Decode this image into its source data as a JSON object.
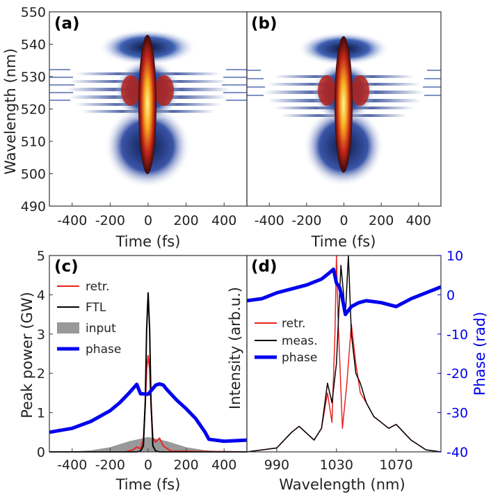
{
  "chart_data": [
    {
      "panel": "(a)",
      "type": "heatmap",
      "title": "",
      "xlabel": "Time (fs)",
      "ylabel": "Wavelength (nm)",
      "xlim": [
        -520,
        520
      ],
      "ylim": [
        490,
        550
      ],
      "xticks": [
        -400,
        -200,
        0,
        200,
        400
      ],
      "yticks": [
        490,
        500,
        510,
        520,
        530,
        540,
        550
      ],
      "description_values": {
        "center_time": 0,
        "center_wavelength": 520,
        "wavelength_span": [
          495,
          543
        ]
      }
    },
    {
      "panel": "(b)",
      "type": "heatmap",
      "title": "",
      "xlabel": "Time (fs)",
      "ylabel": "",
      "xlim": [
        -520,
        520
      ],
      "ylim": [
        490,
        550
      ],
      "xticks": [
        -400,
        -200,
        0,
        200,
        400
      ],
      "description_values": {
        "center_time": 0,
        "center_wavelength": 520,
        "wavelength_span": [
          497,
          542
        ]
      }
    },
    {
      "panel": "(c)",
      "type": "line",
      "xlabel": "Time (fs)",
      "ylabel": "Peak power (GW)",
      "xlim": [
        -520,
        520
      ],
      "ylim": [
        0,
        5
      ],
      "xticks": [
        -400,
        -200,
        0,
        200,
        400
      ],
      "yticks": [
        0,
        1,
        2,
        3,
        4,
        5
      ],
      "legend": [
        "retr.",
        "FTL",
        "input",
        "phase"
      ],
      "legend_position": "top-left",
      "series": [
        {
          "name": "retr.",
          "color": "#e8231f",
          "x": [
            -520,
            -120,
            -80,
            -60,
            -40,
            -25,
            -15,
            -8,
            0,
            8,
            15,
            25,
            40,
            60,
            80,
            120,
            520
          ],
          "values": [
            0,
            0,
            0.05,
            0.12,
            0.08,
            0.3,
            1.2,
            2.1,
            2.45,
            2.1,
            1.2,
            0.35,
            0.25,
            0.35,
            0.15,
            0.02,
            0
          ]
        },
        {
          "name": "FTL",
          "color": "#000000",
          "x": [
            -520,
            -60,
            -40,
            -25,
            -15,
            -8,
            0,
            8,
            15,
            25,
            40,
            60,
            520
          ],
          "values": [
            0,
            0,
            0.02,
            0.15,
            1.3,
            3.1,
            4.05,
            3.1,
            1.3,
            0.15,
            0.02,
            0,
            0
          ]
        },
        {
          "name": "input",
          "color": "#999999",
          "x": [
            -520,
            -400,
            -300,
            -200,
            -100,
            0,
            100,
            200,
            300,
            400,
            520
          ],
          "values": [
            0,
            0.01,
            0.04,
            0.12,
            0.27,
            0.38,
            0.27,
            0.12,
            0.04,
            0.01,
            0
          ]
        },
        {
          "name": "phase",
          "color": "#0000ee",
          "x": [
            -520,
            -400,
            -300,
            -200,
            -150,
            -100,
            -60,
            -40,
            0,
            40,
            60,
            80,
            100,
            150,
            200,
            250,
            300,
            320,
            400,
            520
          ],
          "values": [
            0.5,
            0.6,
            0.78,
            1.05,
            1.25,
            1.5,
            1.72,
            1.48,
            1.47,
            1.7,
            1.73,
            1.7,
            1.58,
            1.32,
            1.1,
            0.85,
            0.5,
            0.32,
            0.27,
            0.3
          ]
        }
      ]
    },
    {
      "panel": "(d)",
      "type": "line",
      "xlabel": "Wavelength (nm)",
      "ylabel": "Intensity (arb.u.)",
      "y2label": "Phase (rad)",
      "xlim": [
        970,
        1100
      ],
      "y2lim": [
        -40,
        10
      ],
      "xticks": [
        990,
        1030,
        1070
      ],
      "y2ticks": [
        10,
        0,
        -10,
        -20,
        -30,
        -40
      ],
      "legend": [
        "retr.",
        "meas.",
        "phase"
      ],
      "legend_position": "middle-left",
      "series": [
        {
          "name": "retr.",
          "color": "#e8231f",
          "x": [
            970,
            990,
            1000,
            1005,
            1015,
            1020,
            1024,
            1027,
            1029,
            1030,
            1031,
            1034,
            1037,
            1040,
            1043,
            1046,
            1050,
            1055,
            1060,
            1065,
            1070,
            1075,
            1080,
            1090,
            1100
          ],
          "values": [
            0,
            0.02,
            0.1,
            0.13,
            0.06,
            0.12,
            0.3,
            0.15,
            0.6,
            1.0,
            0.7,
            0.12,
            0.35,
            0.65,
            0.45,
            0.3,
            0.25,
            0.18,
            0.15,
            0.12,
            0.14,
            0.1,
            0.06,
            0.01,
            0
          ]
        },
        {
          "name": "meas.",
          "color": "#000000",
          "x": [
            970,
            990,
            1000,
            1005,
            1015,
            1020,
            1024,
            1027,
            1030,
            1033,
            1036,
            1038,
            1040,
            1043,
            1046,
            1050,
            1055,
            1060,
            1065,
            1070,
            1075,
            1080,
            1090,
            1100
          ],
          "values": [
            0,
            0.02,
            0.1,
            0.13,
            0.06,
            0.12,
            0.35,
            0.25,
            0.45,
            0.95,
            0.7,
            1.0,
            0.6,
            0.4,
            0.35,
            0.25,
            0.18,
            0.15,
            0.12,
            0.14,
            0.1,
            0.06,
            0.01,
            0
          ]
        },
        {
          "name": "phase",
          "color": "#0000ee",
          "x": [
            970,
            980,
            990,
            1000,
            1010,
            1020,
            1025,
            1028,
            1030,
            1032,
            1034,
            1036,
            1038,
            1040,
            1045,
            1050,
            1060,
            1070,
            1080,
            1090,
            1100
          ],
          "values": [
            -1.5,
            -1,
            0.5,
            1.5,
            2.5,
            4,
            5.5,
            6.5,
            3,
            2,
            -1,
            -5,
            -4,
            -3,
            -2,
            -1.5,
            -2,
            -3,
            -1,
            0.5,
            2
          ]
        }
      ]
    }
  ],
  "panel_labels": {
    "a": "(a)",
    "b": "(b)",
    "c": "(c)",
    "d": "(d)"
  },
  "axes_text": {
    "time_label": "Time (fs)",
    "wavelength_label": "Wavelength (nm)",
    "peak_power_label": "Peak power (GW)",
    "intensity_label": "Intensity (arb.u.)",
    "phase_label": "Phase (rad)"
  },
  "legend_c": {
    "retr": "retr.",
    "ftl": "FTL",
    "input": "input",
    "phase": "phase"
  },
  "legend_d": {
    "retr": "retr.",
    "meas": "meas.",
    "phase": "phase"
  },
  "colors": {
    "red": "#e8231f",
    "black": "#000000",
    "gray": "#999999",
    "blue": "#0000ee"
  }
}
